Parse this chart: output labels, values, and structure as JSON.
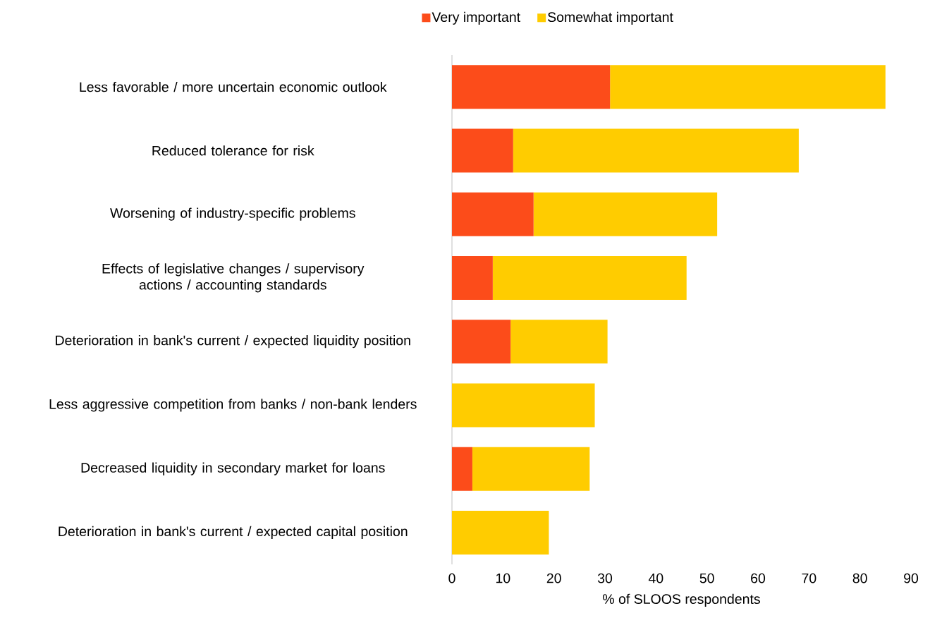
{
  "chart_data": {
    "type": "bar",
    "orientation": "horizontal",
    "stacked": true,
    "categories": [
      "Less favorable / more uncertain economic outlook",
      "Reduced tolerance for risk",
      "Worsening of industry-specific problems",
      "Effects of legislative changes / supervisory actions / accounting standards",
      "Deterioration in bank's current / expected liquidity position",
      "Less aggressive competition from banks / non-bank lenders",
      "Decreased liquidity in secondary market for loans",
      "Deterioration in bank's current / expected capital position"
    ],
    "series": [
      {
        "name": "Very important",
        "color": "#fc4c1a",
        "values": [
          31,
          12,
          16,
          8,
          11.5,
          0,
          4,
          0
        ]
      },
      {
        "name": "Somewhat important",
        "color": "#ffcc00",
        "values": [
          54,
          56,
          36,
          38,
          19,
          28,
          23,
          19
        ]
      }
    ],
    "xlabel": "% of SLOOS respondents",
    "xlim": [
      0,
      90
    ],
    "xticks": [
      0,
      10,
      20,
      30,
      40,
      50,
      60,
      70,
      80,
      90
    ],
    "legend": "top"
  }
}
